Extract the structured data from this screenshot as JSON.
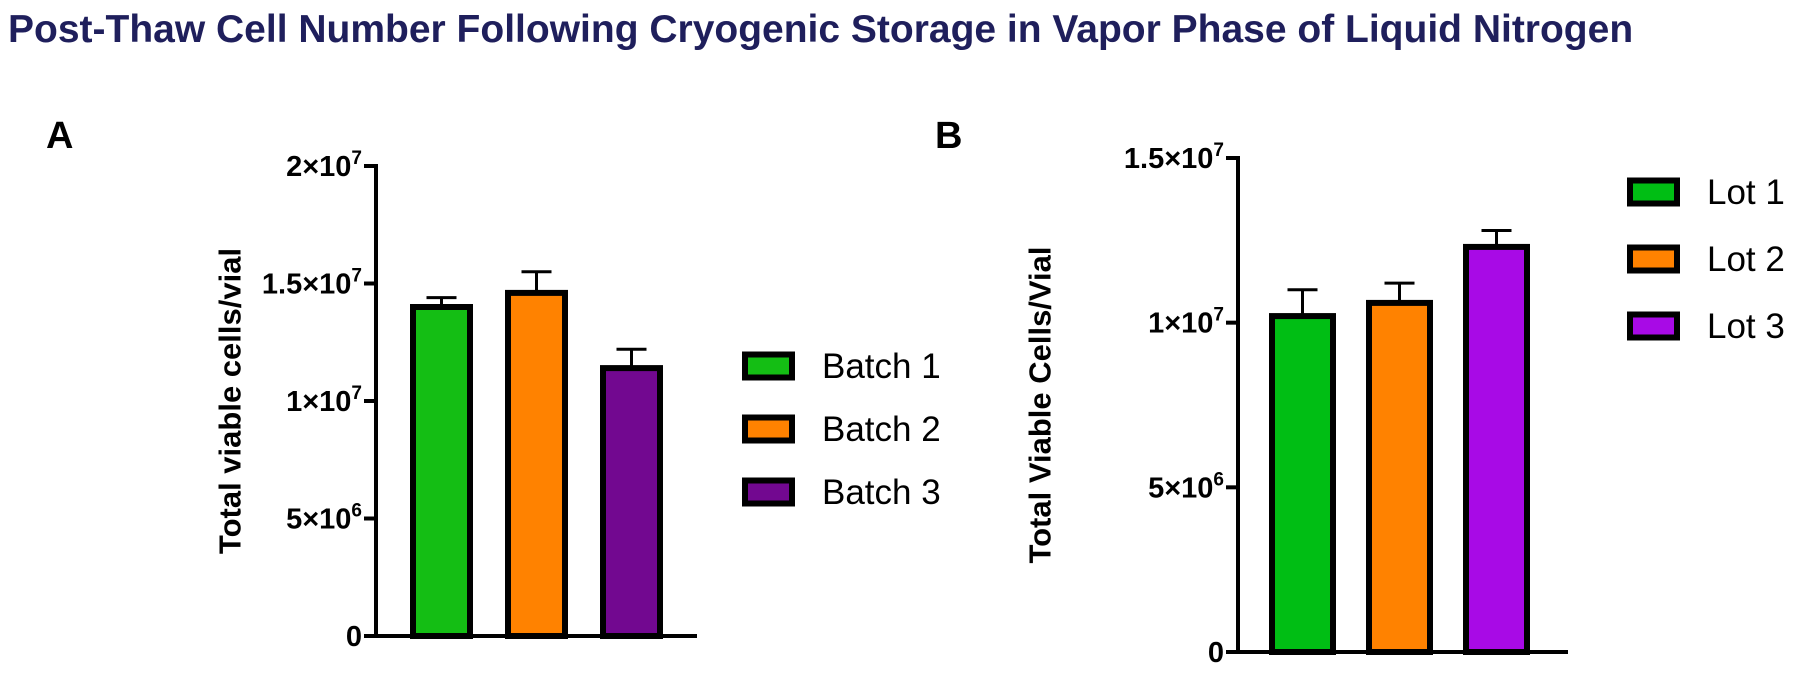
{
  "title": "Post-Thaw Cell Number Following Cryogenic Storage in Vapor Phase of Liquid Nitrogen",
  "chart_data": [
    {
      "type": "bar",
      "panel": "A",
      "ylabel": "Total viable cells/vial",
      "xlabel": "",
      "ylim": [
        0,
        20000000
      ],
      "yticks": [
        {
          "value": 0,
          "base": "0",
          "exp": ""
        },
        {
          "value": 5000000,
          "base": "5×10",
          "exp": "6"
        },
        {
          "value": 10000000,
          "base": "1×10",
          "exp": "7"
        },
        {
          "value": 15000000,
          "base": "1.5×10",
          "exp": "7"
        },
        {
          "value": 20000000,
          "base": "2×10",
          "exp": "7"
        }
      ],
      "categories": [
        "Batch 1",
        "Batch 2",
        "Batch 3"
      ],
      "values": [
        14000000,
        14600000,
        11400000
      ],
      "errors": [
        400000,
        900000,
        800000
      ],
      "colors": [
        "#14be14",
        "#ff8200",
        "#720890"
      ],
      "legend": {
        "placement": "right",
        "entries": [
          "Batch 1",
          "Batch 2",
          "Batch 3"
        ]
      },
      "grid": false
    },
    {
      "type": "bar",
      "panel": "B",
      "ylabel": "Total Viable Cells/Vial",
      "xlabel": "",
      "ylim": [
        0,
        15000000
      ],
      "yticks": [
        {
          "value": 0,
          "base": "0",
          "exp": ""
        },
        {
          "value": 5000000,
          "base": "5×10",
          "exp": "6"
        },
        {
          "value": 10000000,
          "base": "1×10",
          "exp": "7"
        },
        {
          "value": 15000000,
          "base": "1.5×10",
          "exp": "7"
        }
      ],
      "categories": [
        "Lot 1",
        "Lot 2",
        "Lot 3"
      ],
      "values": [
        10200000,
        10600000,
        12300000
      ],
      "errors": [
        800000,
        600000,
        500000
      ],
      "colors": [
        "#00be14",
        "#ff8200",
        "#a80ae6"
      ],
      "legend": {
        "placement": "top-right",
        "entries": [
          "Lot 1",
          "Lot 2",
          "Lot 3"
        ]
      },
      "grid": false
    }
  ]
}
